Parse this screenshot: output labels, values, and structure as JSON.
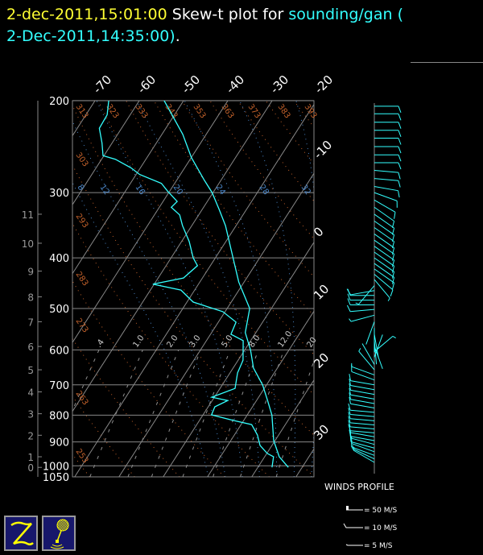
{
  "header": {
    "run_time": "2-dec-2011,15:01:00",
    "plot_label": " Skew-t plot for ",
    "station": "sounding/gan (",
    "obs_time": "2-Dec-2011,14:35:00)",
    "period": "."
  },
  "colors": {
    "temperature": "#33ffff",
    "dewpoint": "#33ffff",
    "isotherm": "#888888",
    "dry_adiabat": "#c0602a",
    "moist_adiabat": "#4a86c8",
    "mixing_ratio": "#cccccc",
    "title_time": "#ffff33",
    "logo_bg": "#17176b",
    "logo_fg": "#ffff00"
  },
  "chart_data": {
    "type": "line",
    "title": "Skew-t plot for sounding/gan",
    "pressure_ticks": [
      200,
      300,
      400,
      500,
      600,
      700,
      800,
      900,
      1000,
      1050
    ],
    "height_ticks_km": [
      0,
      1,
      2,
      3,
      4,
      5,
      6,
      7,
      8,
      9,
      10,
      11
    ],
    "height_tick_pressures": [
      1007,
      961,
      874,
      795,
      722,
      655,
      591,
      530,
      475,
      424,
      375,
      330
    ],
    "isotherm_top_labels": [
      "-70",
      "-60",
      "-50",
      "-40",
      "-30",
      "-20"
    ],
    "isotherm_right_labels": [
      "-10",
      "0",
      "10",
      "20",
      "30"
    ],
    "isotherms_c": [
      -110,
      -100,
      -90,
      -80,
      -70,
      -60,
      -50,
      -40,
      -30,
      -20,
      -10,
      0,
      10,
      20,
      30,
      40,
      50
    ],
    "dry_adiabat_labels": [
      "313",
      "323",
      "333",
      "343",
      "353",
      "363",
      "373",
      "383",
      "393",
      "303",
      "293",
      "283",
      "273",
      "263",
      "253"
    ],
    "dry_adiabats_k": [
      253,
      263,
      273,
      283,
      293,
      303,
      313,
      323,
      333,
      343,
      353,
      363,
      373,
      383,
      393
    ],
    "moist_adiabat_labels": [
      "8",
      "12",
      "16",
      "20",
      "24",
      "28",
      "32"
    ],
    "moist_adiabats_c": [
      8,
      12,
      16,
      20,
      24,
      28,
      32
    ],
    "mixing_ratio_labels": [
      ".4",
      "1.0",
      "2.0",
      "3.0",
      "5.0",
      "8.0",
      "12.0",
      "20"
    ],
    "mixing_ratios_gkg": [
      0.4,
      1,
      2,
      3,
      5,
      8,
      12,
      20
    ],
    "ylim_hpa": [
      1050,
      200
    ],
    "temperature": [
      [
        200,
        -54.4
      ],
      [
        232,
        -45.3
      ],
      [
        257,
        -40
      ],
      [
        283,
        -34
      ],
      [
        300,
        -30.2
      ],
      [
        323,
        -26.2
      ],
      [
        347,
        -22.4
      ],
      [
        400,
        -16
      ],
      [
        445,
        -11.2
      ],
      [
        500,
        -4.9
      ],
      [
        556,
        -2.4
      ],
      [
        600,
        1.3
      ],
      [
        650,
        4.6
      ],
      [
        700,
        9.1
      ],
      [
        750,
        12.5
      ],
      [
        800,
        15.6
      ],
      [
        895,
        19.7
      ],
      [
        961,
        23.3
      ],
      [
        1007,
        26.9
      ]
    ],
    "dewpoint": [
      [
        200,
        -66.9
      ],
      [
        213,
        -65.2
      ],
      [
        226,
        -65
      ],
      [
        241,
        -62.3
      ],
      [
        255,
        -60.2
      ],
      [
        259,
        -56.9
      ],
      [
        269,
        -52.1
      ],
      [
        277,
        -49.2
      ],
      [
        288,
        -43
      ],
      [
        298,
        -40.5
      ],
      [
        312,
        -36.8
      ],
      [
        320,
        -37.3
      ],
      [
        331,
        -34.3
      ],
      [
        347,
        -32.1
      ],
      [
        372,
        -28.3
      ],
      [
        400,
        -25
      ],
      [
        414,
        -22.9
      ],
      [
        437,
        -24.3
      ],
      [
        449,
        -30.3
      ],
      [
        461,
        -23.1
      ],
      [
        486,
        -18.6
      ],
      [
        507,
        -10.5
      ],
      [
        531,
        -6
      ],
      [
        560,
        -5.4
      ],
      [
        576,
        -1.7
      ],
      [
        628,
        1.1
      ],
      [
        664,
        1.7
      ],
      [
        711,
        3.4
      ],
      [
        739,
        -0.6
      ],
      [
        750,
        3.5
      ],
      [
        771,
        1.5
      ],
      [
        799,
        1.9
      ],
      [
        819,
        7.7
      ],
      [
        834,
        12.4
      ],
      [
        873,
        15.2
      ],
      [
        914,
        17.3
      ],
      [
        947,
        20.1
      ],
      [
        961,
        22
      ],
      [
        1007,
        23.2
      ]
    ],
    "winds_dir_deg_speed_ms": [
      [
        205,
        90,
        12
      ],
      [
        212,
        90,
        12
      ],
      [
        220,
        90,
        12
      ],
      [
        228,
        90,
        12
      ],
      [
        236,
        90,
        11
      ],
      [
        245,
        90,
        11
      ],
      [
        254,
        90,
        12
      ],
      [
        263,
        90,
        11
      ],
      [
        272,
        95,
        12
      ],
      [
        282,
        95,
        11
      ],
      [
        292,
        100,
        10
      ],
      [
        300,
        110,
        10
      ],
      [
        310,
        120,
        10
      ],
      [
        320,
        125,
        11
      ],
      [
        330,
        125,
        11
      ],
      [
        340,
        125,
        11
      ],
      [
        350,
        125,
        12
      ],
      [
        360,
        125,
        12
      ],
      [
        370,
        125,
        12
      ],
      [
        380,
        125,
        12
      ],
      [
        390,
        125,
        12
      ],
      [
        400,
        125,
        12
      ],
      [
        410,
        125,
        12
      ],
      [
        420,
        125,
        11
      ],
      [
        430,
        130,
        10
      ],
      [
        440,
        140,
        8
      ],
      [
        452,
        220,
        8
      ],
      [
        462,
        260,
        10
      ],
      [
        472,
        270,
        12
      ],
      [
        482,
        270,
        12
      ],
      [
        492,
        270,
        11
      ],
      [
        502,
        265,
        10
      ],
      [
        515,
        255,
        8
      ],
      [
        530,
        200,
        3
      ],
      [
        545,
        180,
        2
      ],
      [
        560,
        170,
        2
      ],
      [
        575,
        175,
        3
      ],
      [
        590,
        160,
        2
      ],
      [
        605,
        50,
        5
      ],
      [
        620,
        20,
        2
      ],
      [
        640,
        330,
        4
      ],
      [
        655,
        320,
        6
      ],
      [
        670,
        290,
        6
      ],
      [
        685,
        290,
        11
      ],
      [
        700,
        280,
        12
      ],
      [
        715,
        280,
        13
      ],
      [
        730,
        280,
        13
      ],
      [
        745,
        280,
        13
      ],
      [
        760,
        280,
        13
      ],
      [
        775,
        280,
        13
      ],
      [
        790,
        275,
        13
      ],
      [
        805,
        275,
        13
      ],
      [
        820,
        275,
        13
      ],
      [
        835,
        275,
        12
      ],
      [
        850,
        275,
        13
      ],
      [
        865,
        275,
        13
      ],
      [
        880,
        280,
        12
      ],
      [
        895,
        280,
        12
      ],
      [
        910,
        285,
        11
      ],
      [
        925,
        285,
        11
      ],
      [
        940,
        290,
        10
      ],
      [
        955,
        290,
        10
      ],
      [
        970,
        295,
        9
      ],
      [
        985,
        300,
        8
      ]
    ]
  },
  "winds_legend": {
    "title": "WINDS PROFILE",
    "items": [
      "= 50 M/S",
      "= 10 M/S",
      "= 5 M/S"
    ]
  },
  "logos": {
    "left_icon": "z-logo-icon",
    "right_icon": "balloon-logo-icon"
  }
}
